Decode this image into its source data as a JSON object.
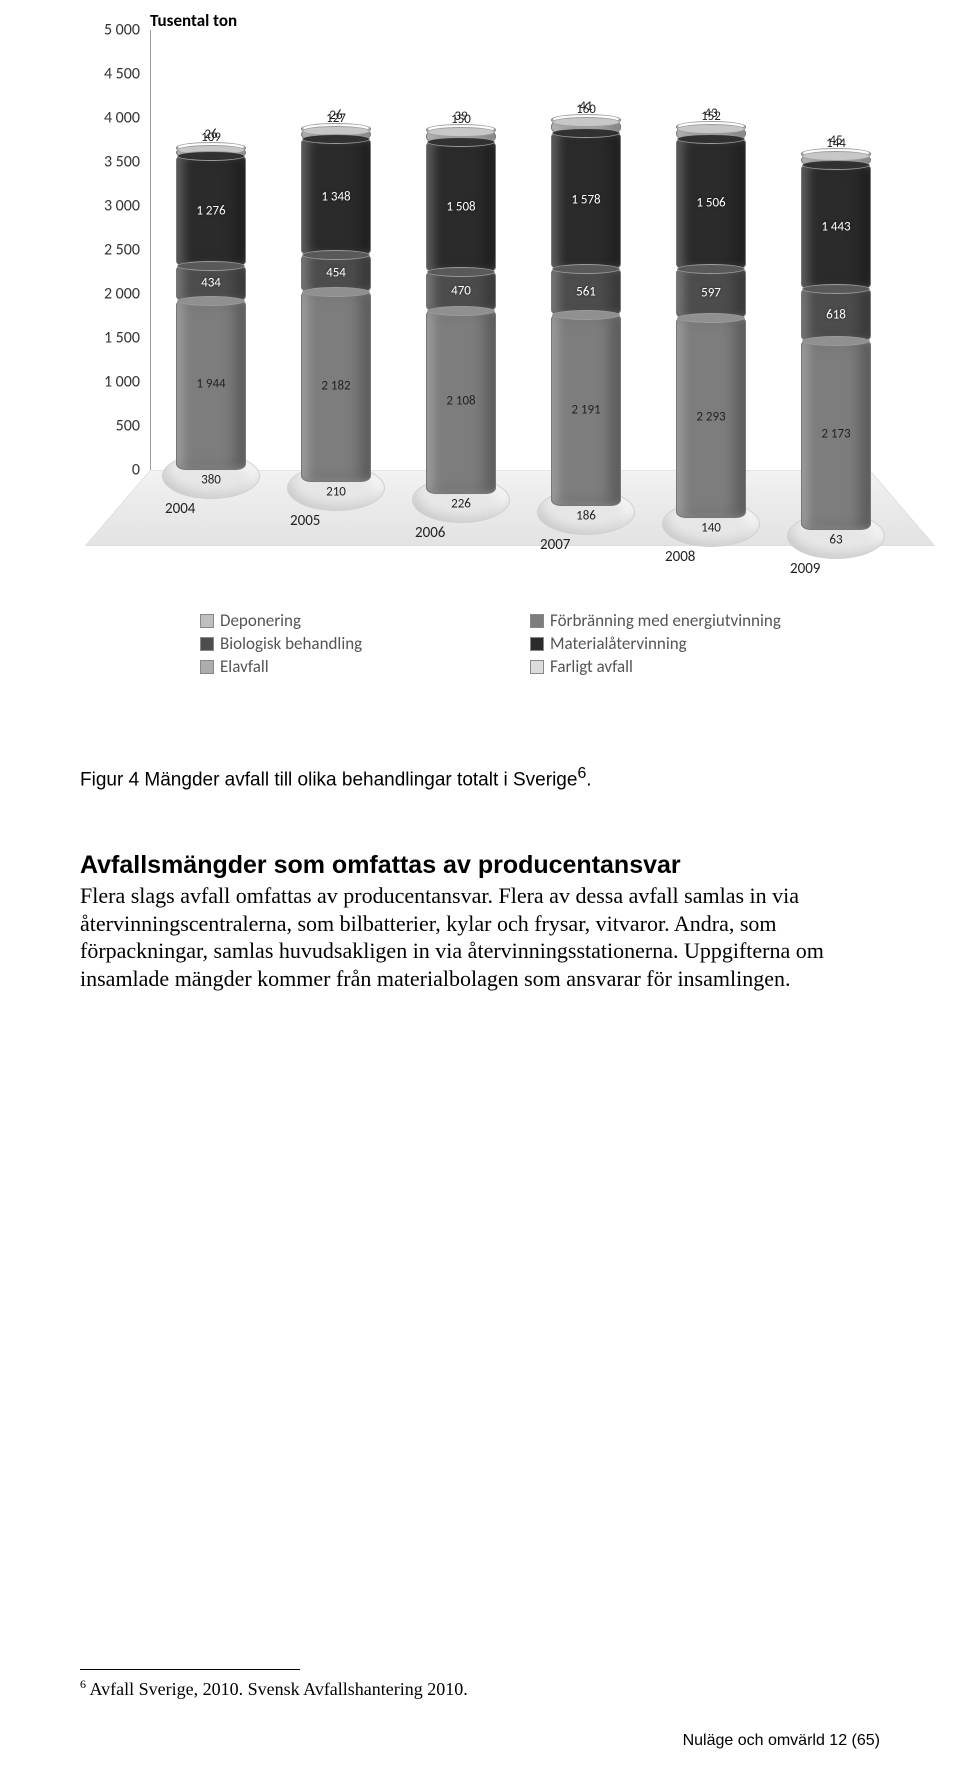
{
  "chart": {
    "title": "Tusental ton",
    "type": "stacked-bar-3d",
    "y_axis": {
      "min": 0,
      "max": 5000,
      "step": 500,
      "ticks": [
        "0",
        "500",
        "1 000",
        "1 500",
        "2 000",
        "2 500",
        "3 000",
        "3 500",
        "4 000",
        "4 500",
        "5 000"
      ]
    },
    "categories": [
      "2004",
      "2005",
      "2006",
      "2007",
      "2008",
      "2009"
    ],
    "series": [
      {
        "name": "Deponering",
        "color": "#bfbfbf",
        "values": [
          380,
          210,
          226,
          186,
          140,
          63
        ]
      },
      {
        "name": "Förbränning med energiutvinning",
        "color": "#7d7d7d",
        "values": [
          1944,
          2182,
          2108,
          2191,
          2293,
          2173
        ]
      },
      {
        "name": "Biologisk behandling",
        "color": "#4d4d4d",
        "values": [
          434,
          454,
          470,
          561,
          597,
          618
        ]
      },
      {
        "name": "Materialåtervinning",
        "color": "#2b2b2b",
        "values": [
          1276,
          1348,
          1508,
          1578,
          1506,
          1443
        ]
      },
      {
        "name": "Elavfall",
        "color": "#adadad",
        "values": [
          109,
          127,
          150,
          160,
          152,
          144
        ]
      },
      {
        "name": "Farligt avfall",
        "color": "#dcdcdc",
        "values": [
          26,
          26,
          39,
          41,
          43,
          45
        ]
      }
    ],
    "bar_label_color_dark": "#222222",
    "bar_label_color_light": "#ffffff",
    "label_fontsize": 13,
    "axis_fontsize": 16,
    "legend_fontsize": 17
  },
  "figure_caption_prefix": "Figur 4 Mängder avfall till olika behandlingar totalt i Sverige",
  "figure_caption_sup": "6",
  "figure_caption_suffix": ".",
  "section_heading": "Avfallsmängder som omfattas av producentansvar",
  "body_text": "Flera slags avfall omfattas av producentansvar. Flera av dessa avfall samlas in via återvinningscentralerna, som bilbatterier, kylar och frysar, vitvaror. Andra, som förpackningar, samlas huvudsakligen in via återvinningsstationerna. Uppgifterna om insamlade mängder kommer från materialbolagen som ansvarar för insamlingen.",
  "footnote_sup": "6",
  "footnote_text": " Avfall Sverige, 2010. Svensk Avfallshantering 2010.",
  "page_footer": "Nuläge och omvärld 12 (65)"
}
